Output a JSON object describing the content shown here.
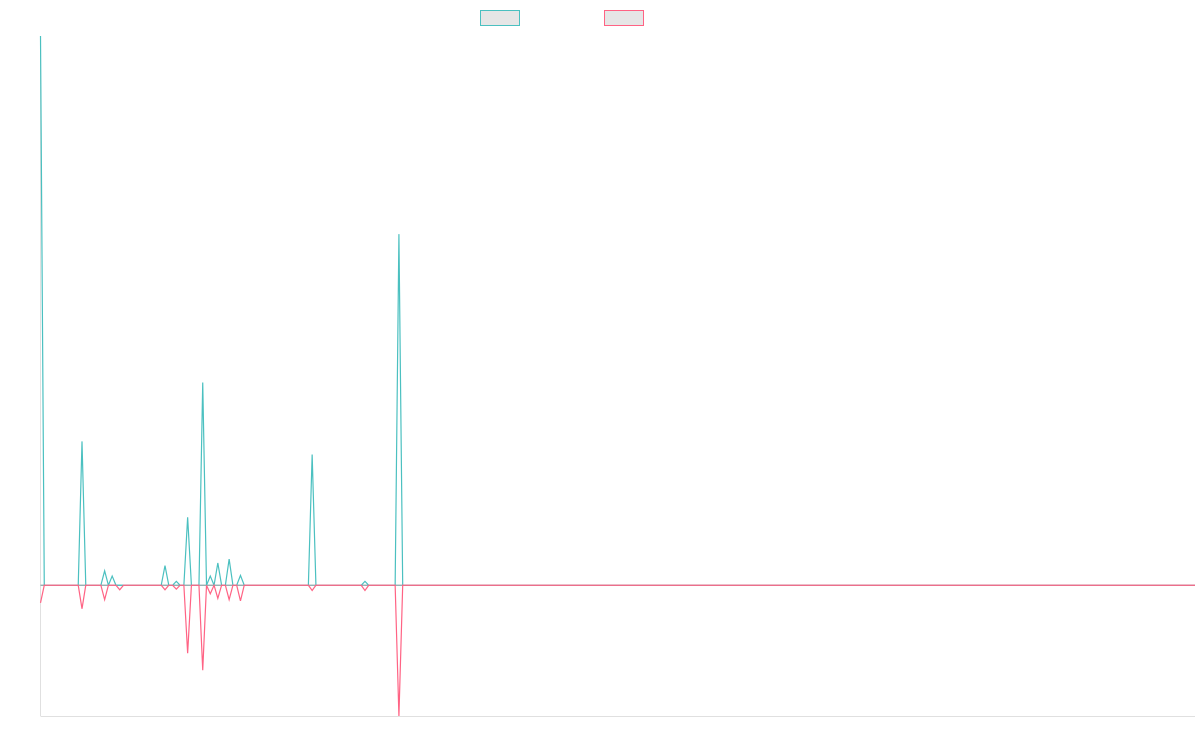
{
  "chart_data": {
    "type": "line",
    "title": "",
    "xlabel": "",
    "ylabel": "",
    "grid": false,
    "legend_position": "top-center",
    "x_count": 307,
    "ylim": [
      -200,
      840
    ],
    "series": [
      {
        "name": "",
        "color": "#4bc0c0",
        "points": [
          [
            0,
            840
          ],
          [
            1,
            0
          ],
          [
            10,
            0
          ],
          [
            11,
            220
          ],
          [
            12,
            0
          ],
          [
            16,
            0
          ],
          [
            17,
            22
          ],
          [
            18,
            0
          ],
          [
            19,
            14
          ],
          [
            20,
            0
          ],
          [
            32,
            0
          ],
          [
            33,
            30
          ],
          [
            34,
            0
          ],
          [
            35,
            0
          ],
          [
            36,
            6
          ],
          [
            37,
            0
          ],
          [
            38,
            0
          ],
          [
            39,
            104
          ],
          [
            40,
            0
          ],
          [
            42,
            0
          ],
          [
            43,
            310
          ],
          [
            44,
            0
          ],
          [
            45,
            14
          ],
          [
            46,
            0
          ],
          [
            47,
            34
          ],
          [
            48,
            0
          ],
          [
            49,
            0
          ],
          [
            50,
            40
          ],
          [
            51,
            0
          ],
          [
            52,
            0
          ],
          [
            53,
            15
          ],
          [
            54,
            0
          ],
          [
            71,
            0
          ],
          [
            72,
            200
          ],
          [
            73,
            0
          ],
          [
            85,
            0
          ],
          [
            86,
            6
          ],
          [
            87,
            0
          ],
          [
            94,
            0
          ],
          [
            95,
            537
          ],
          [
            96,
            0
          ],
          [
            306,
            0
          ]
        ]
      },
      {
        "name": "",
        "color": "#ff6384",
        "points": [
          [
            0,
            -27
          ],
          [
            1,
            0
          ],
          [
            10,
            0
          ],
          [
            11,
            -36
          ],
          [
            12,
            0
          ],
          [
            16,
            0
          ],
          [
            17,
            -22
          ],
          [
            18,
            0
          ],
          [
            20,
            0
          ],
          [
            21,
            -7
          ],
          [
            22,
            0
          ],
          [
            32,
            0
          ],
          [
            33,
            -7
          ],
          [
            34,
            0
          ],
          [
            35,
            0
          ],
          [
            36,
            -6
          ],
          [
            37,
            0
          ],
          [
            38,
            0
          ],
          [
            39,
            -104
          ],
          [
            40,
            0
          ],
          [
            42,
            0
          ],
          [
            43,
            -130
          ],
          [
            44,
            0
          ],
          [
            45,
            -13
          ],
          [
            46,
            0
          ],
          [
            47,
            -20
          ],
          [
            48,
            0
          ],
          [
            49,
            0
          ],
          [
            50,
            -22
          ],
          [
            51,
            0
          ],
          [
            52,
            0
          ],
          [
            53,
            -24
          ],
          [
            54,
            0
          ],
          [
            71,
            0
          ],
          [
            72,
            -8
          ],
          [
            73,
            0
          ],
          [
            85,
            0
          ],
          [
            86,
            -8
          ],
          [
            87,
            0
          ],
          [
            94,
            0
          ],
          [
            95,
            -200
          ],
          [
            96,
            0
          ],
          [
            306,
            0
          ]
        ]
      }
    ]
  }
}
